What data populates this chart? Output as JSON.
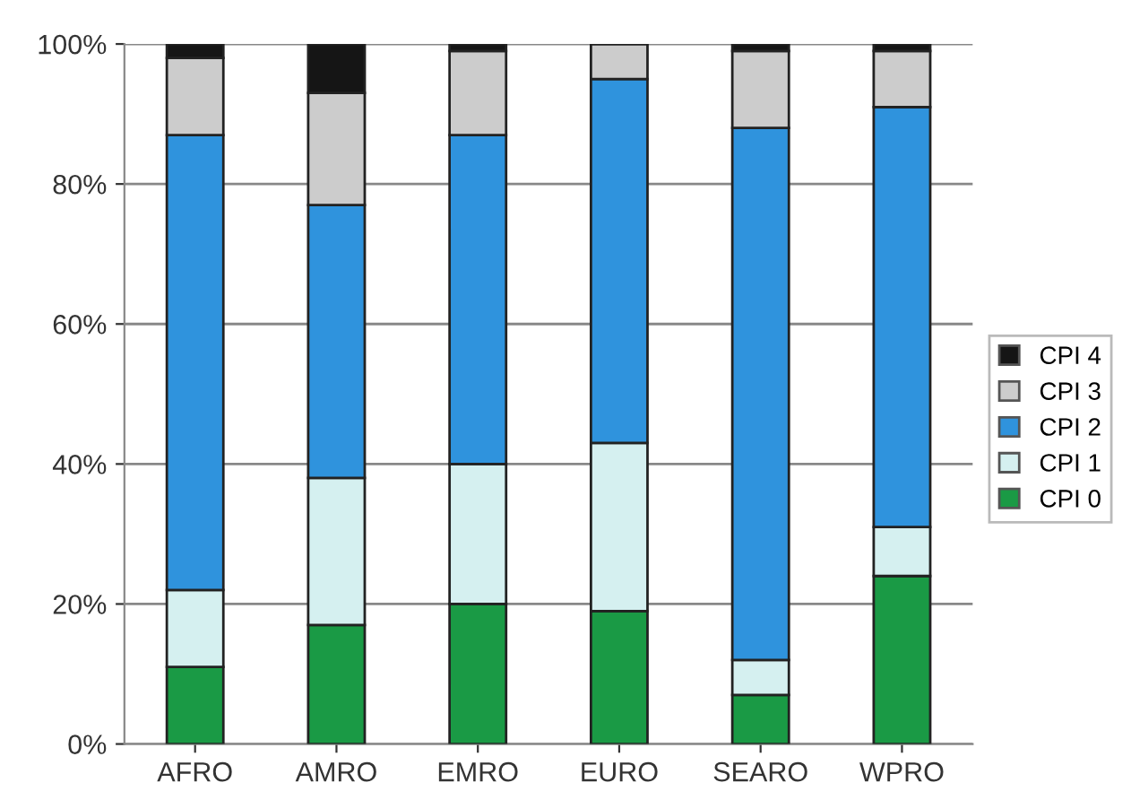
{
  "chart_data": {
    "type": "bar",
    "stacked": true,
    "categories": [
      "AFRO",
      "AMRO",
      "EMRO",
      "EURO",
      "SEARO",
      "WPRO"
    ],
    "series": [
      {
        "name": "CPI 0",
        "color": "#1a9a45",
        "values": [
          11,
          17,
          20,
          19,
          7,
          24
        ]
      },
      {
        "name": "CPI 1",
        "color": "#d5f0f0",
        "values": [
          11,
          21,
          20,
          24,
          5,
          7
        ]
      },
      {
        "name": "CPI 2",
        "color": "#2f93dd",
        "values": [
          65,
          39,
          47,
          52,
          76,
          60
        ]
      },
      {
        "name": "CPI 3",
        "color": "#cccccc",
        "values": [
          11,
          16,
          12,
          5,
          11,
          8
        ]
      },
      {
        "name": "CPI 4",
        "color": "#151515",
        "values": [
          2,
          7,
          1,
          0,
          1,
          1
        ]
      }
    ],
    "ylim": [
      0,
      100
    ],
    "yticks": [
      {
        "value": 0,
        "label": "0%"
      },
      {
        "value": 20,
        "label": "20%"
      },
      {
        "value": 40,
        "label": "40%"
      },
      {
        "value": 60,
        "label": "60%"
      },
      {
        "value": 80,
        "label": "80%"
      },
      {
        "value": 100,
        "label": "100%"
      }
    ],
    "grid": "y",
    "legend": "right"
  }
}
